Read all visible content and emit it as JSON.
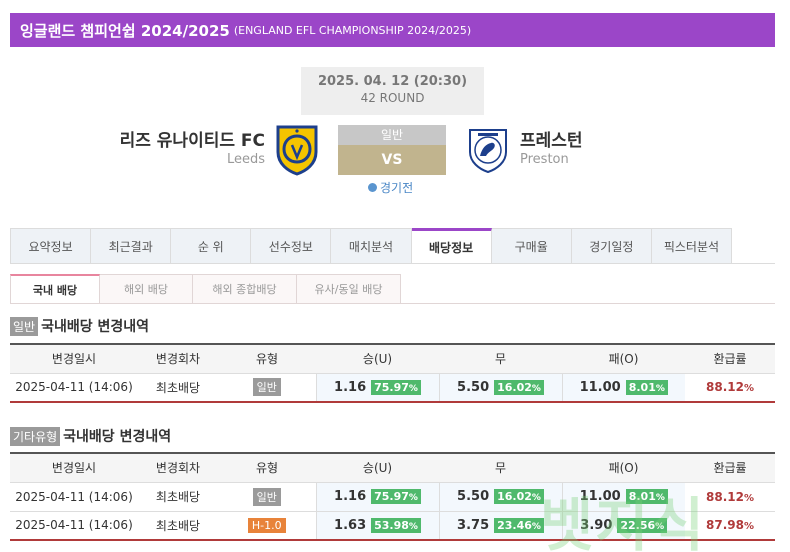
{
  "header": {
    "league_title": "잉글랜드 챔피언쉽 2024/2025",
    "league_subtitle": "(ENGLAND EFL CHAMPIONSHIP 2024/2025)"
  },
  "match": {
    "date": "2025. 04. 12 (20:30)",
    "round": "42 ROUND",
    "home_name": "리즈 유나이티드 FC",
    "home_name_en": "Leeds",
    "away_name": "프레스턴",
    "away_name_en": "Preston",
    "type_label": "일반",
    "vs_label": "VS",
    "status": "경기전",
    "crest_home_icon": "leeds-crest-icon",
    "crest_away_icon": "preston-crest-icon"
  },
  "tabs": [
    {
      "label": "요약정보"
    },
    {
      "label": "최근결과"
    },
    {
      "label": "순 위"
    },
    {
      "label": "선수정보"
    },
    {
      "label": "매치분석"
    },
    {
      "label": "배당정보",
      "active": true
    },
    {
      "label": "구매율"
    },
    {
      "label": "경기일정"
    },
    {
      "label": "픽스터분석"
    }
  ],
  "subtabs": [
    {
      "label": "국내 배당",
      "active": true
    },
    {
      "label": "해외 배당"
    },
    {
      "label": "해외 종합배당"
    },
    {
      "label": "유사/동일 배당"
    }
  ],
  "columns": [
    "변경일시",
    "변경회차",
    "유형",
    "승(U)",
    "무",
    "패(O)",
    "환급률"
  ],
  "section1": {
    "tag": "일반",
    "title": "국내배당 변경내역",
    "rows": [
      {
        "datetime": "2025-04-11 (14:06)",
        "round": "최초배당",
        "type": "일반",
        "win": "1.16",
        "win_pct": "75.97",
        "draw": "5.50",
        "draw_pct": "16.02",
        "loss": "11.00",
        "loss_pct": "8.01",
        "payout": "88.12"
      }
    ]
  },
  "section2": {
    "tag": "기타유형",
    "title": "국내배당 변경내역",
    "rows": [
      {
        "datetime": "2025-04-11 (14:06)",
        "round": "최초배당",
        "type": "일반",
        "win": "1.16",
        "win_pct": "75.97",
        "draw": "5.50",
        "draw_pct": "16.02",
        "loss": "11.00",
        "loss_pct": "8.01",
        "payout": "88.12"
      },
      {
        "datetime": "2025-04-11 (14:06)",
        "round": "최초배당",
        "type": "H-1.0",
        "win": "1.63",
        "win_pct": "53.98",
        "draw": "3.75",
        "draw_pct": "23.46",
        "loss": "3.90",
        "loss_pct": "22.56",
        "payout": "87.98"
      }
    ]
  },
  "units": {
    "percent": "%"
  },
  "watermark": "벳지식",
  "colors": {
    "accent": "#9b46c8",
    "pct_green": "#4fb96c",
    "payout_red": "#b03a3a",
    "handicap_orange": "#e8833a"
  }
}
